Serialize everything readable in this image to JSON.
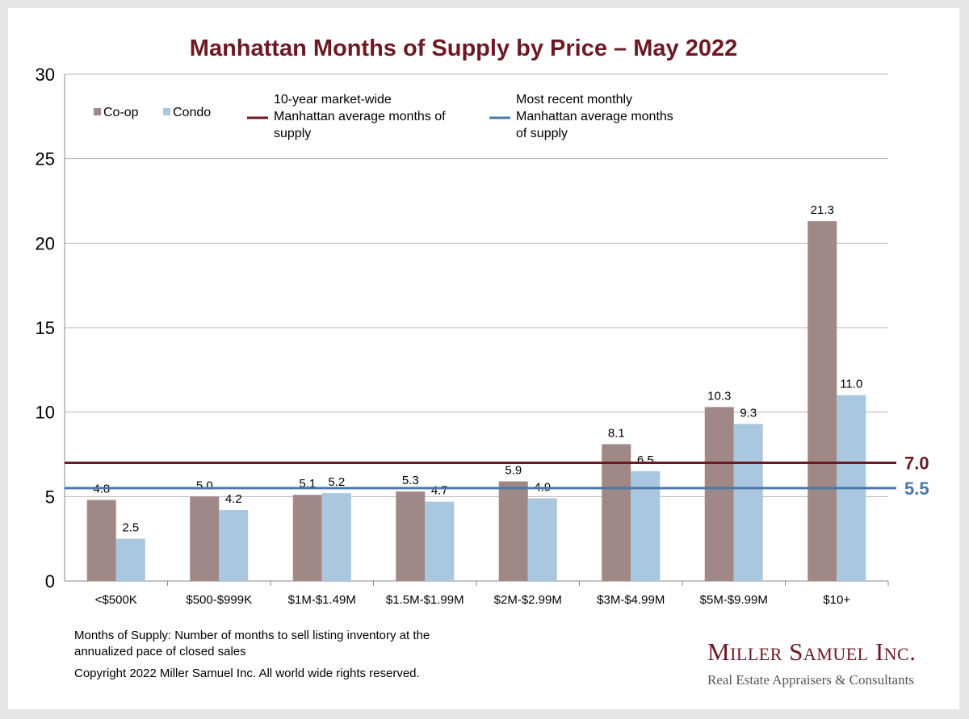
{
  "title": "Manhattan Months of Supply by Price – May 2022",
  "footnote": {
    "definition": "Months of Supply: Number of months to sell listing inventory at the annualized pace of closed sales",
    "copyright": "Copyright 2022 Miller Samuel Inc.  All world wide rights reserved."
  },
  "brand": {
    "name": "Miller Samuel Inc.",
    "tagline": "Real Estate Appraisers & Consultants"
  },
  "chart_data": {
    "type": "bar",
    "categories": [
      "<$500K",
      "$500-$999K",
      "$1M-$1.49M",
      "$1.5M-$1.99M",
      "$2M-$2.99M",
      "$3M-$4.99M",
      "$5M-$9.99M",
      "$10+"
    ],
    "series": [
      {
        "name": "Co-op",
        "color": "#a08886",
        "values": [
          4.8,
          5.0,
          5.1,
          5.3,
          5.9,
          8.1,
          10.3,
          21.3
        ],
        "labels": [
          "4.8",
          "5.0",
          "5.1",
          "5.3",
          "5.9",
          "8.1",
          "10.3",
          "21.3"
        ]
      },
      {
        "name": "Condo",
        "color": "#a9c7de",
        "values": [
          2.5,
          4.2,
          5.2,
          4.7,
          4.9,
          6.5,
          9.3,
          11.0
        ],
        "labels": [
          "2.5",
          "4.2",
          "5.2",
          "4.7",
          "4.9",
          "6.5",
          "9.3",
          "11.0"
        ]
      }
    ],
    "reference_lines": [
      {
        "name": "10-year market-wide Manhattan average months of supply",
        "value": 7.0,
        "label": "7.0",
        "color": "#6b1a23"
      },
      {
        "name": "Most recent monthly Manhattan average months of supply",
        "value": 5.5,
        "label": "5.5",
        "color": "#4a78a8"
      }
    ],
    "yticks": [
      0,
      5,
      10,
      15,
      20,
      25,
      30
    ],
    "ylim": [
      0,
      30
    ],
    "grid": true,
    "legend_position": "top-left"
  }
}
